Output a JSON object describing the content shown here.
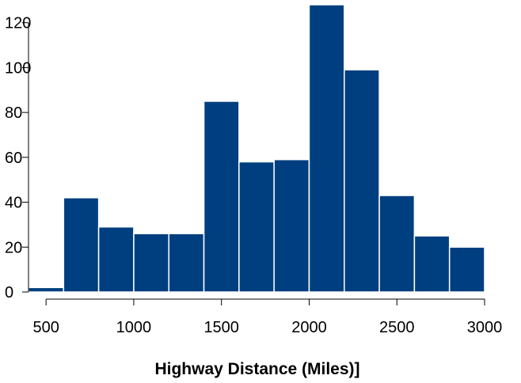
{
  "chart_data": {
    "type": "bar",
    "title": "",
    "xlabel": "Highway Distance (Miles)]",
    "ylabel": "",
    "bar_color": "#003f7f",
    "bar_edge_color": "#ffffff",
    "xlim": [
      400,
      3000
    ],
    "ylim": [
      0,
      128
    ],
    "grid": false,
    "x_ticks": [
      500,
      1000,
      1500,
      2000,
      2500,
      3000
    ],
    "y_ticks": [
      0,
      20,
      40,
      60,
      80,
      100,
      120
    ],
    "bins": [
      {
        "x0": 400,
        "x1": 600,
        "value": 2
      },
      {
        "x0": 600,
        "x1": 800,
        "value": 42
      },
      {
        "x0": 800,
        "x1": 1000,
        "value": 29
      },
      {
        "x0": 1000,
        "x1": 1200,
        "value": 26
      },
      {
        "x0": 1200,
        "x1": 1400,
        "value": 26
      },
      {
        "x0": 1400,
        "x1": 1600,
        "value": 85
      },
      {
        "x0": 1600,
        "x1": 1800,
        "value": 58
      },
      {
        "x0": 1800,
        "x1": 2000,
        "value": 59
      },
      {
        "x0": 2000,
        "x1": 2200,
        "value": 128
      },
      {
        "x0": 2200,
        "x1": 2400,
        "value": 99
      },
      {
        "x0": 2400,
        "x1": 2600,
        "value": 43
      },
      {
        "x0": 2600,
        "x1": 2800,
        "value": 25
      },
      {
        "x0": 2800,
        "x1": 3000,
        "value": 20
      }
    ]
  }
}
